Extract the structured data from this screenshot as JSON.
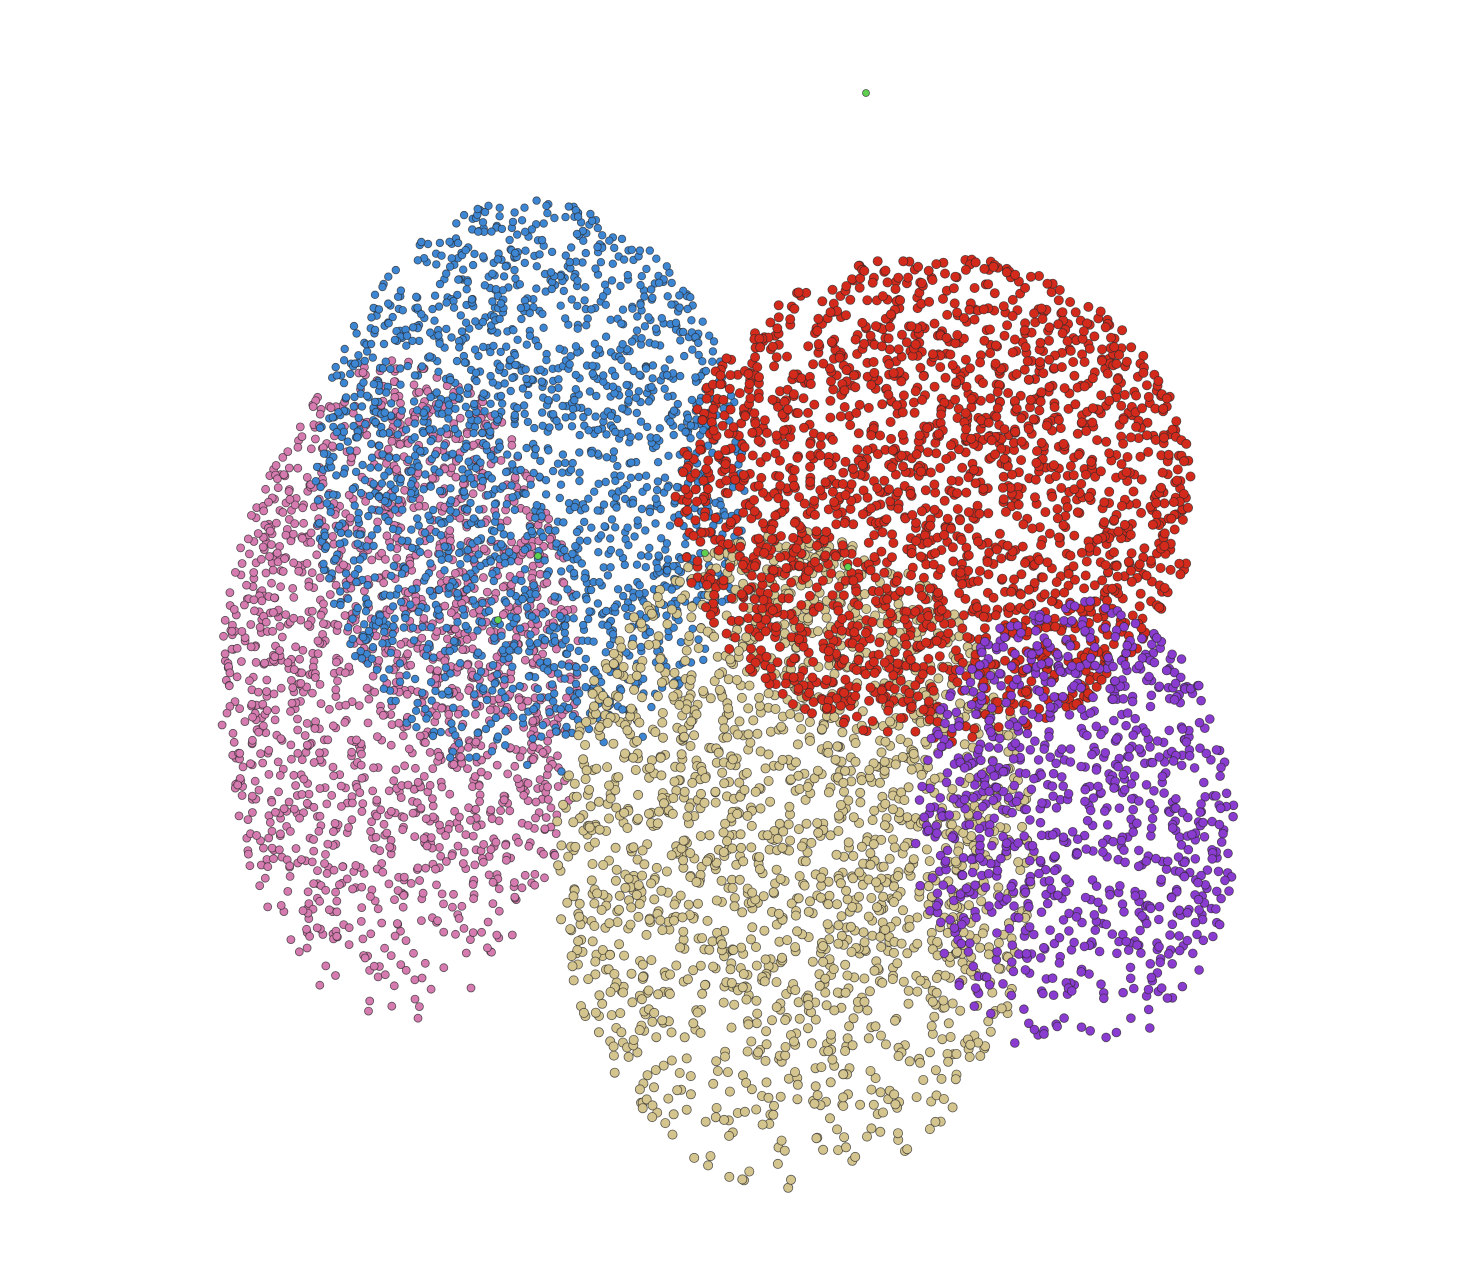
{
  "clusters": [
    {
      "color": "#d67bb0"
    },
    {
      "color": "#3d86d4"
    },
    {
      "color": "#d4c48e"
    },
    {
      "color": "#d42a1c"
    },
    {
      "color": "#8a3bd0"
    },
    {
      "color": "#5fcf4f"
    }
  ]
}
